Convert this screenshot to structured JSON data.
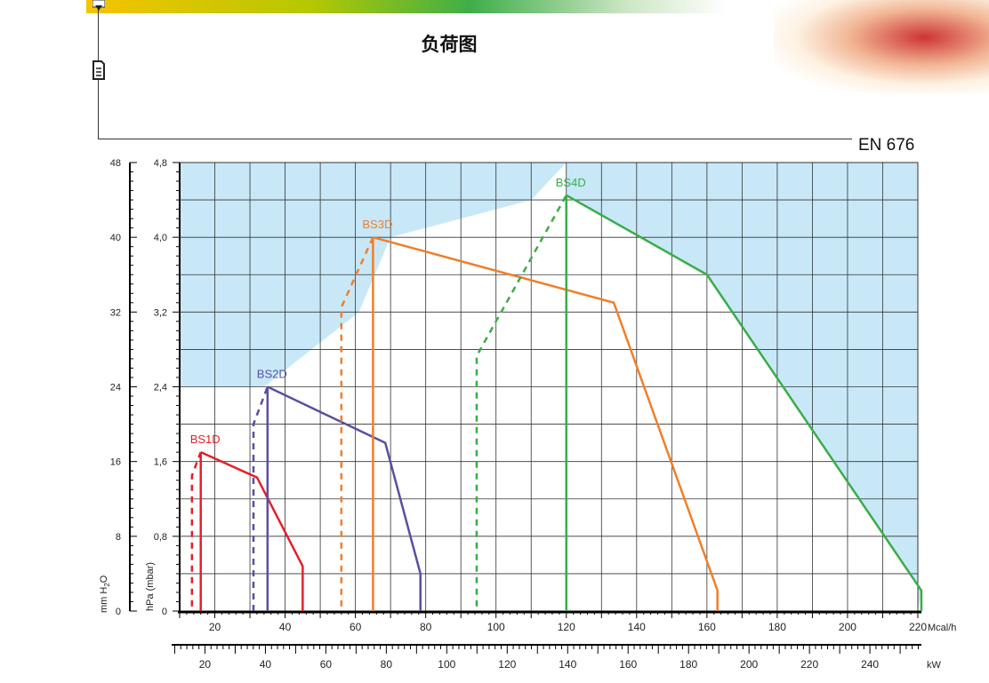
{
  "page": {
    "title": "负荷图",
    "standard": "EN 676"
  },
  "chart_data": {
    "type": "line",
    "x_units": "Mcal/h",
    "x2_units": "kW",
    "y_left_label": "mm H2O",
    "y_right_label": "hPa (mbar)",
    "xlim": [
      10,
      220
    ],
    "ylim": [
      0,
      4.8
    ],
    "x_ticks": [
      20,
      40,
      60,
      80,
      100,
      120,
      140,
      160,
      180,
      200,
      220
    ],
    "y_ticks": [
      "0",
      "0,8",
      "1,6",
      "2,4",
      "3,2",
      "4,0",
      "4,8"
    ],
    "y_mm_ticks": [
      "0",
      "8",
      "16",
      "24",
      "32",
      "40",
      "48"
    ],
    "x2_ticks": [
      20,
      40,
      60,
      80,
      100,
      120,
      140,
      160,
      180,
      200,
      220,
      240
    ],
    "x2_per_x1": 1.163,
    "grid": true,
    "shaded_region_color": "#c8e8f8",
    "shaded_region_boundary": [
      [
        10,
        4.8
      ],
      [
        10,
        2.4
      ],
      [
        12.5,
        2.4
      ],
      [
        25,
        2.4
      ],
      [
        25,
        2.4
      ],
      [
        34,
        2.4
      ],
      [
        34,
        2.4
      ],
      [
        61,
        3.2
      ],
      [
        61,
        3.2
      ],
      [
        70,
        4.0
      ],
      [
        70,
        4.0
      ],
      [
        110,
        4.4
      ],
      [
        120,
        4.8
      ]
    ],
    "series": [
      {
        "name": "BS1D",
        "color": "#e3202a",
        "start": [
          [
            13.5,
            0.05
          ],
          [
            13.5,
            1.45
          ],
          [
            16,
            1.7
          ]
        ],
        "curve": [
          [
            16,
            1.7
          ],
          [
            32,
            1.43
          ],
          [
            45,
            0.48
          ],
          [
            45,
            0.0
          ]
        ],
        "min_output": [
          16,
          0.0
        ]
      },
      {
        "name": "BS2D",
        "color": "#5a4fa0",
        "start": [
          [
            31,
            0.0
          ],
          [
            31,
            2.0
          ],
          [
            35,
            2.4
          ]
        ],
        "curve": [
          [
            35,
            2.4
          ],
          [
            68.5,
            1.8
          ],
          [
            78.5,
            0.4
          ],
          [
            78.5,
            0.0
          ]
        ],
        "min_output": [
          35,
          0.0
        ]
      },
      {
        "name": "BS3D",
        "color": "#f07f2a",
        "start": [
          [
            56,
            0.05
          ],
          [
            56,
            3.25
          ],
          [
            65,
            4.0
          ]
        ],
        "curve": [
          [
            65,
            4.0
          ],
          [
            133.5,
            3.3
          ],
          [
            163,
            0.22
          ],
          [
            163,
            0.0
          ]
        ],
        "min_output": [
          65,
          0.0
        ]
      },
      {
        "name": "BS4D",
        "color": "#3aad48",
        "start": [
          [
            94.5,
            0.05
          ],
          [
            94.5,
            2.73
          ],
          [
            120,
            4.45
          ]
        ],
        "curve": [
          [
            120,
            4.45
          ],
          [
            160,
            3.6
          ],
          [
            221,
            0.22
          ],
          [
            221,
            0.0
          ]
        ],
        "min_output": [
          120,
          0.0
        ]
      }
    ]
  }
}
